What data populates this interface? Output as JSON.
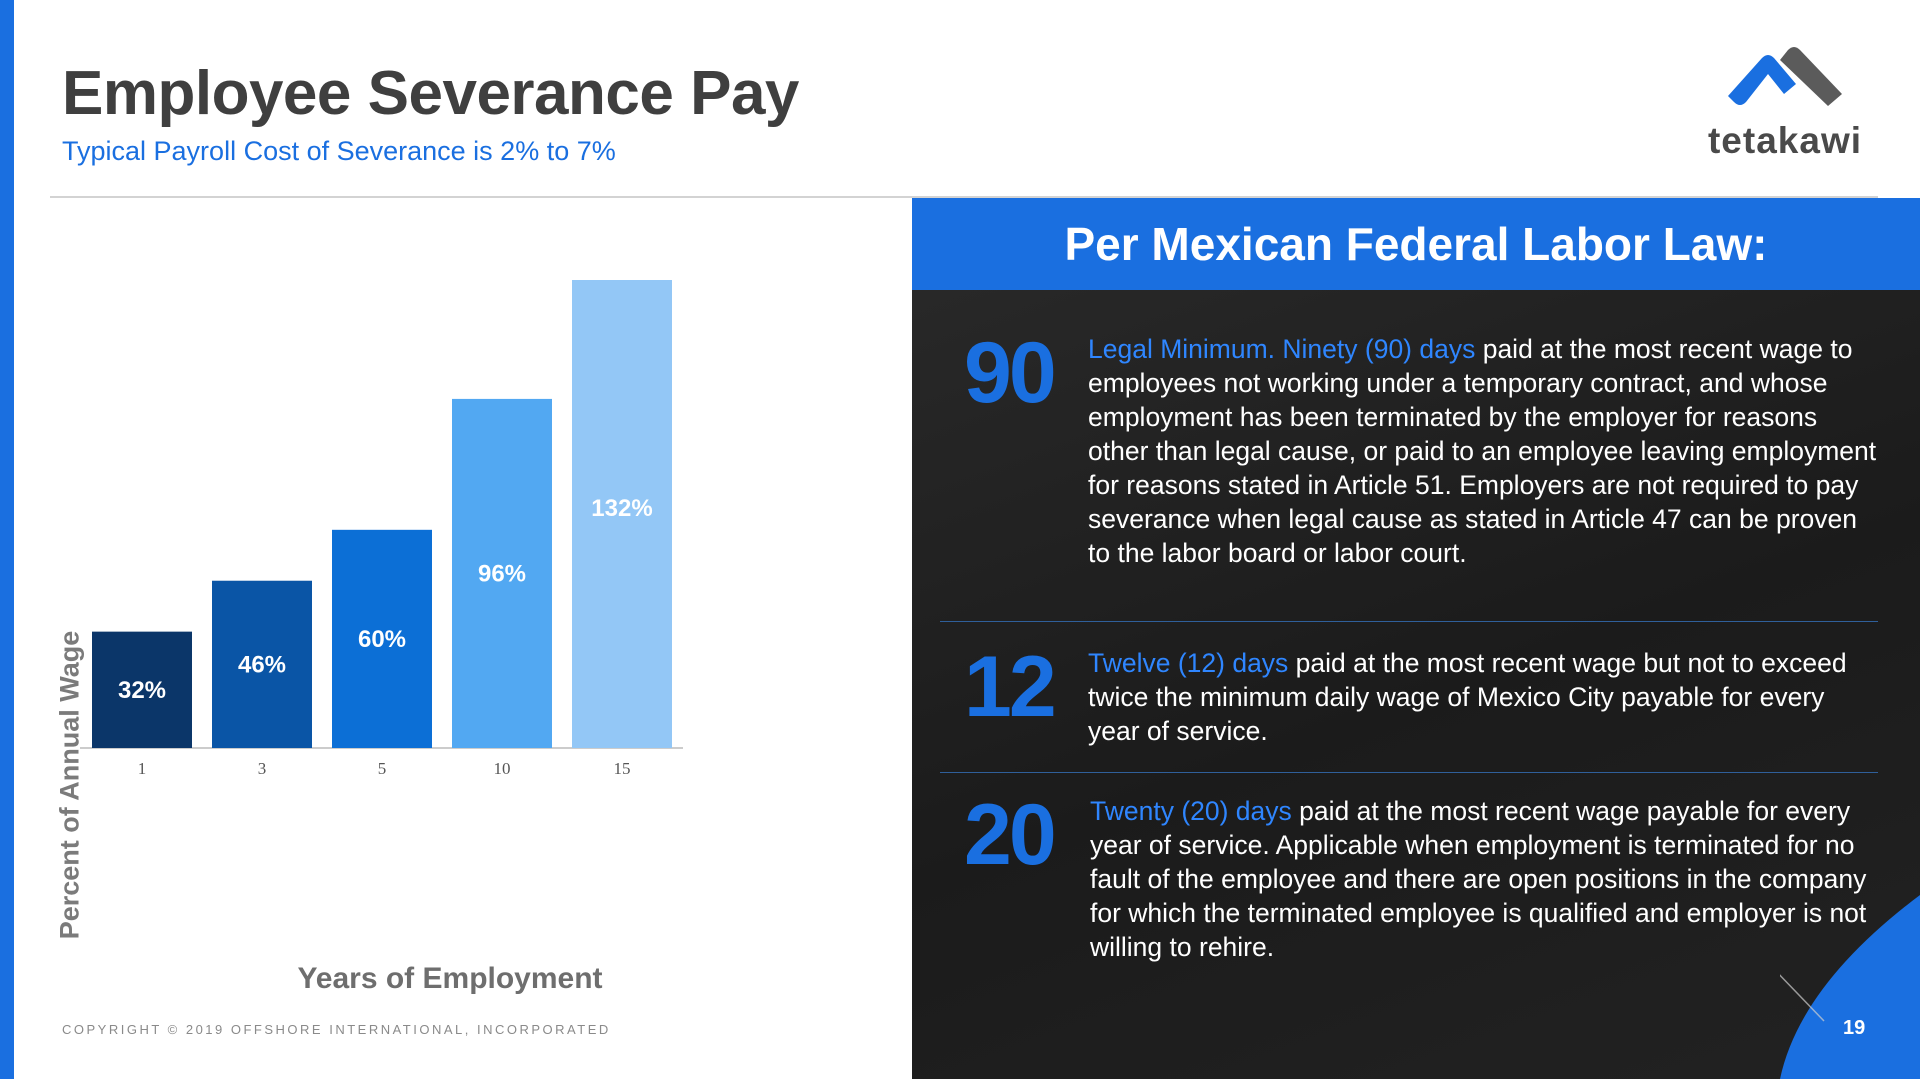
{
  "header": {
    "title": "Employee Severance Pay",
    "subtitle": "Typical Payroll Cost of Severance is 2% to 7%"
  },
  "logo": {
    "text": "tetakawi"
  },
  "chart_data": {
    "type": "bar",
    "categories": [
      "1",
      "3",
      "5",
      "10",
      "15"
    ],
    "values": [
      32,
      46,
      60,
      96,
      132
    ],
    "data_labels": [
      "32%",
      "46%",
      "60%",
      "96%",
      "132%"
    ],
    "xlabel": "Years of Employment",
    "ylabel": "Percent of Annual Wage",
    "ylim": [
      0,
      132
    ],
    "grid": false,
    "colors": [
      "#0b3669",
      "#0a55a6",
      "#0c6fd6",
      "#52a8f2",
      "#93c7f6"
    ]
  },
  "copyright": "COPYRIGHT © 2019 OFFSHORE INTERNATIONAL, INCORPORATED",
  "panel": {
    "title": "Per Mexican Federal Labor Law:",
    "rules": [
      {
        "number": "90",
        "highlight": "Legal Minimum. Ninety (90) days",
        "text": " paid at the most recent wage to employees not working under a temporary contract, and whose employment has been terminated by the employer for reasons other than legal cause, or paid to an employee leaving employment for reasons stated in Article 51. Employers are not required to pay severance when legal cause as stated in Article 47 can be proven to the labor board or labor court."
      },
      {
        "number": "12",
        "highlight": "Twelve (12) days",
        "text": " paid at the most recent wage but not to exceed twice the minimum daily wage of Mexico City payable for every year of service."
      },
      {
        "number": "20",
        "highlight": "Twenty (20) days",
        "text": " paid at the most recent wage payable for every year of service. Applicable when employment is terminated for no fault of the employee and there are open positions in the company for which the terminated employee is qualified and employer is not willing to rehire."
      }
    ]
  },
  "page_number": "19",
  "colors": {
    "accent": "#1a6fe0",
    "panel_bg": "#1f1f1f",
    "title_gray": "#3f3f3f"
  }
}
